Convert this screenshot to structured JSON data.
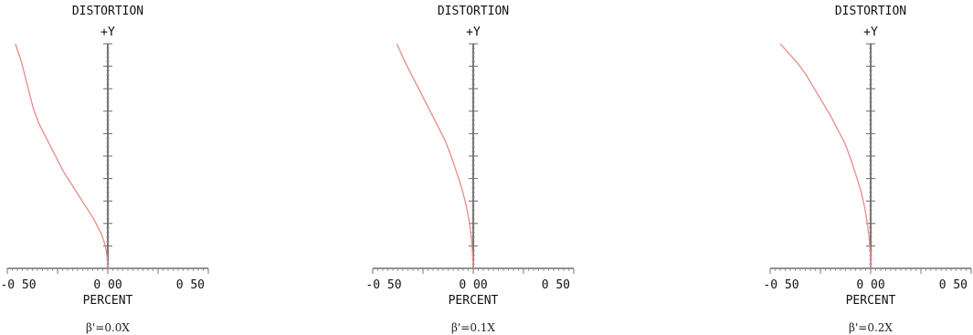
{
  "chart_data": [
    {
      "type": "line",
      "title": "DISTORTION",
      "y_axis_label": "+Y",
      "xlabel": "PERCENT",
      "x_ticks": [
        "-0 50",
        "0 00",
        "0 50"
      ],
      "xlim": [
        -0.5,
        0.5
      ],
      "ylim": [
        0,
        1
      ],
      "caption": "β'=0.0X",
      "curve_color": "#e88a8a",
      "series": [
        {
          "x": [
            0.0,
            -0.003,
            -0.012,
            -0.03,
            -0.07,
            -0.12,
            -0.17,
            -0.22,
            -0.26,
            -0.3,
            -0.34,
            -0.37,
            -0.39,
            -0.41,
            -0.43,
            -0.46
          ],
          "y": [
            0.0,
            0.05,
            0.1,
            0.15,
            0.22,
            0.29,
            0.36,
            0.43,
            0.5,
            0.57,
            0.64,
            0.71,
            0.78,
            0.85,
            0.92,
            1.0
          ]
        }
      ]
    },
    {
      "type": "line",
      "title": "DISTORTION",
      "y_axis_label": "+Y",
      "xlabel": "PERCENT",
      "x_ticks": [
        "-0 50",
        "0 00",
        "0 50"
      ],
      "xlim": [
        -0.5,
        0.5
      ],
      "ylim": [
        0,
        1
      ],
      "caption": "β'=0.1X",
      "curve_color": "#e88a8a",
      "series": [
        {
          "x": [
            0.0,
            -0.003,
            -0.01,
            -0.02,
            -0.035,
            -0.055,
            -0.08,
            -0.11,
            -0.14,
            -0.18,
            -0.22,
            -0.26,
            -0.3,
            -0.34,
            -0.38
          ],
          "y": [
            0.0,
            0.07,
            0.14,
            0.21,
            0.28,
            0.35,
            0.42,
            0.5,
            0.57,
            0.64,
            0.71,
            0.78,
            0.85,
            0.92,
            1.0
          ]
        }
      ]
    },
    {
      "type": "line",
      "title": "DISTORTION",
      "y_axis_label": "+Y",
      "xlabel": "PERCENT",
      "x_ticks": [
        "-0 50",
        "0 00",
        "0 50"
      ],
      "xlim": [
        -0.5,
        0.5
      ],
      "ylim": [
        0,
        1
      ],
      "caption": "β'=0.2X",
      "curve_color": "#e88a8a",
      "series": [
        {
          "x": [
            0.0,
            -0.002,
            -0.008,
            -0.018,
            -0.032,
            -0.05,
            -0.075,
            -0.1,
            -0.13,
            -0.165,
            -0.2,
            -0.24,
            -0.28,
            -0.32,
            -0.36,
            -0.4,
            -0.45
          ],
          "y": [
            0.0,
            0.07,
            0.14,
            0.21,
            0.28,
            0.35,
            0.42,
            0.49,
            0.56,
            0.62,
            0.68,
            0.74,
            0.8,
            0.86,
            0.91,
            0.95,
            1.0
          ]
        }
      ]
    }
  ]
}
